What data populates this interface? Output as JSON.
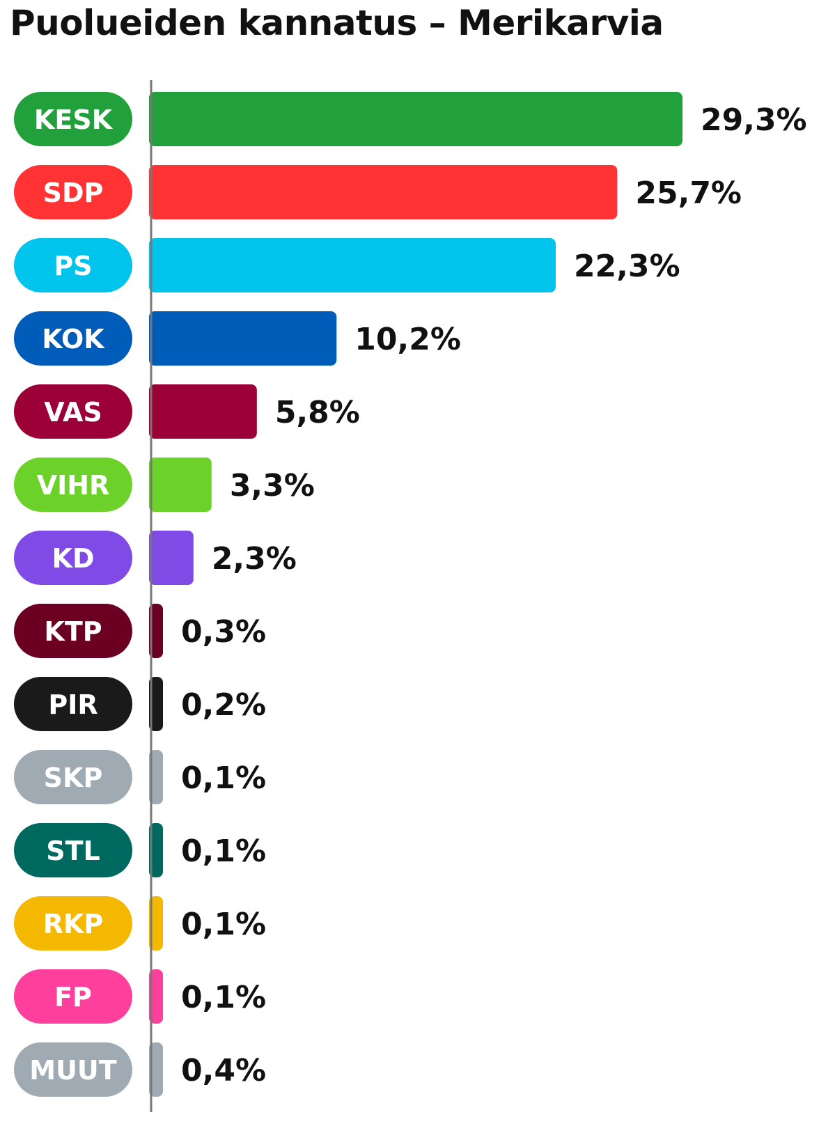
{
  "chart_data": {
    "type": "bar",
    "orientation": "horizontal",
    "title": "Puolueiden kannatus – Merikarvia",
    "categories": [
      "KESK",
      "SDP",
      "PS",
      "KOK",
      "VAS",
      "VIHR",
      "KD",
      "KTP",
      "PIR",
      "SKP",
      "STL",
      "RKP",
      "FP",
      "MUUT"
    ],
    "values": [
      29.3,
      25.7,
      22.3,
      10.2,
      5.8,
      3.3,
      2.3,
      0.3,
      0.2,
      0.1,
      0.1,
      0.1,
      0.1,
      0.4
    ],
    "value_labels": [
      "29,3%",
      "25,7%",
      "22,3%",
      "10,2%",
      "5,8%",
      "3,3%",
      "2,3%",
      "0,3%",
      "0,2%",
      "0,1%",
      "0,1%",
      "0,1%",
      "0,1%",
      "0,4%"
    ],
    "colors": [
      "#22a03c",
      "#ff3333",
      "#00c4eb",
      "#005cb9",
      "#9b0037",
      "#6cd22a",
      "#7f4ae6",
      "#6b0022",
      "#1a1a1a",
      "#a0aab2",
      "#00695f",
      "#f5b800",
      "#ff3f9c",
      "#a0aab2"
    ],
    "xlim": [
      0,
      29.3
    ],
    "grid": false,
    "legend": "none"
  }
}
